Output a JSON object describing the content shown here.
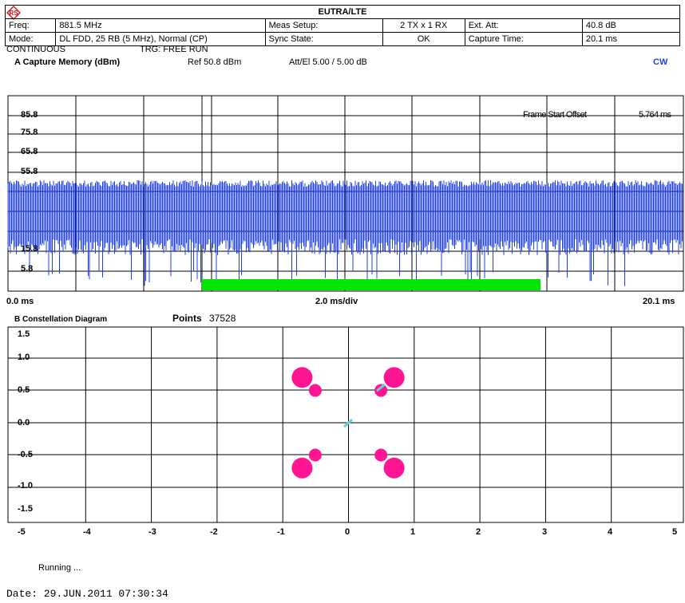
{
  "header": {
    "title": "EUTRA/LTE",
    "freq_label": "Freq:",
    "freq_value": "881.5 MHz",
    "mode_label": "Mode:",
    "mode_value": "DL FDD, 25 RB (5 MHz), Normal (CP)",
    "meas_setup_label": "Meas Setup:",
    "meas_setup_value": "2 TX x 1 RX",
    "sync_state_label": "Sync State:",
    "sync_state_value": "OK",
    "ext_att_label": "Ext. Att:",
    "ext_att_value": "40.8 dB",
    "capture_time_label": "Capture Time:",
    "capture_time_value": "20.1 ms"
  },
  "status_line": {
    "mode": "CONTINUOUS",
    "trigger": "TRG: FREE RUN"
  },
  "capture_panel": {
    "title": "A  Capture Memory (dBm)",
    "ref": "Ref   50.8 dBm",
    "att": "Att/El  5.00 / 5.00 dB",
    "cw": "CW",
    "frame_offset_label": "Frame Start Offset",
    "frame_offset_value": "5.764 ms",
    "y_ticks": [
      "85.8",
      "75.8",
      "65.8",
      "55.8",
      "15.8",
      "5.8"
    ],
    "x_start": "0.0 ms",
    "x_div": "2.0 ms/div",
    "x_end": "20.1 ms",
    "colors": {
      "trace": "#1f3fe8",
      "marker": "#00e600"
    }
  },
  "constellation_panel": {
    "title": "B  Constellation Diagram",
    "points_label": "Points",
    "points_value": "37528",
    "y_ticks": [
      "1.5",
      "1.0",
      "0.5",
      "0.0",
      "-0.5",
      "-1.0",
      "-1.5"
    ],
    "x_ticks": [
      "-5",
      "-4",
      "-3",
      "-2",
      "-1",
      "0",
      "1",
      "2",
      "3",
      "4",
      "5"
    ],
    "colors": {
      "points": "#ff1493",
      "pilot": "#5fd3e6"
    }
  },
  "footer": {
    "status": "Running ...",
    "date": "Date: 29.JUN.2011  07:30:34"
  }
}
